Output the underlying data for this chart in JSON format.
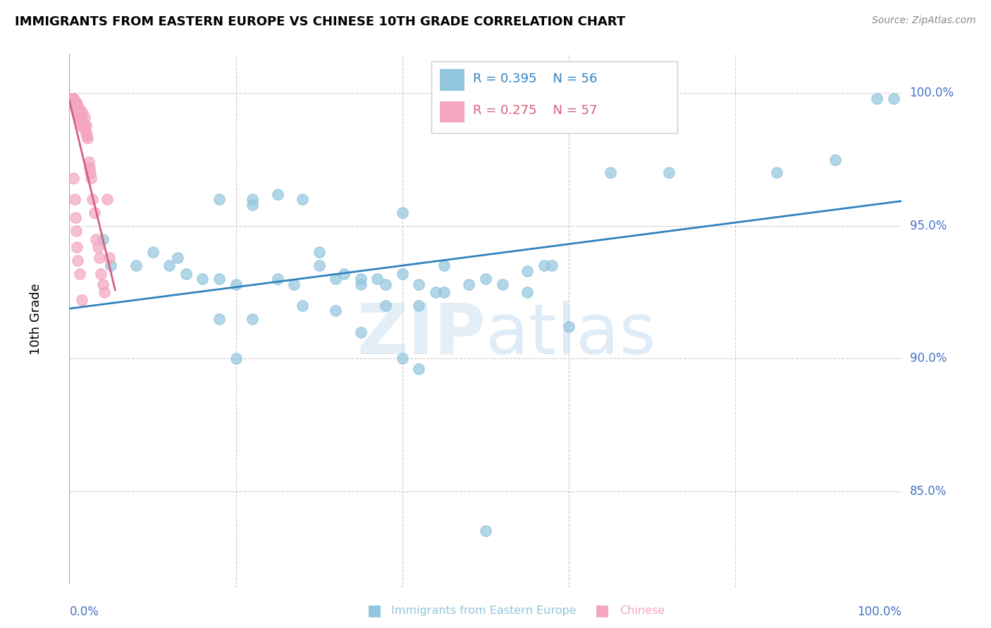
{
  "title": "IMMIGRANTS FROM EASTERN EUROPE VS CHINESE 10TH GRADE CORRELATION CHART",
  "source": "Source: ZipAtlas.com",
  "ylabel": "10th Grade",
  "ytick_labels": [
    "100.0%",
    "95.0%",
    "90.0%",
    "85.0%"
  ],
  "ytick_values": [
    1.0,
    0.95,
    0.9,
    0.85
  ],
  "xmin": 0.0,
  "xmax": 1.0,
  "ymin": 0.815,
  "ymax": 1.015,
  "blue_color": "#92c5de",
  "pink_color": "#f4a6c0",
  "blue_line_color": "#3182bd",
  "pink_line_color": "#d6607a",
  "grid_color": "#cccccc",
  "tick_color": "#4472C4",
  "blue_scatter_x": [
    0.04,
    0.12,
    0.18,
    0.22,
    0.05,
    0.08,
    0.1,
    0.13,
    0.14,
    0.16,
    0.18,
    0.2,
    0.25,
    0.27,
    0.3,
    0.32,
    0.35,
    0.38,
    0.4,
    0.42,
    0.45,
    0.48,
    0.5,
    0.52,
    0.55,
    0.57,
    0.22,
    0.25,
    0.28,
    0.3,
    0.33,
    0.35,
    0.37,
    0.4,
    0.42,
    0.45,
    0.35,
    0.4,
    0.42,
    0.2,
    0.55,
    0.6,
    0.18,
    0.22,
    0.28,
    0.32,
    0.38,
    0.44,
    0.5,
    0.58,
    0.65,
    0.72,
    0.85,
    0.92,
    0.97,
    0.99
  ],
  "blue_scatter_y": [
    0.945,
    0.935,
    0.96,
    0.96,
    0.935,
    0.935,
    0.94,
    0.938,
    0.932,
    0.93,
    0.93,
    0.928,
    0.93,
    0.928,
    0.94,
    0.93,
    0.928,
    0.928,
    0.955,
    0.92,
    0.935,
    0.928,
    0.93,
    0.928,
    0.925,
    0.935,
    0.958,
    0.962,
    0.96,
    0.935,
    0.932,
    0.93,
    0.93,
    0.932,
    0.928,
    0.925,
    0.91,
    0.9,
    0.896,
    0.9,
    0.933,
    0.912,
    0.915,
    0.915,
    0.92,
    0.918,
    0.92,
    0.925,
    0.835,
    0.935,
    0.97,
    0.97,
    0.97,
    0.975,
    0.998,
    0.998
  ],
  "pink_scatter_x": [
    0.005,
    0.005,
    0.005,
    0.005,
    0.005,
    0.006,
    0.006,
    0.006,
    0.007,
    0.007,
    0.008,
    0.008,
    0.009,
    0.009,
    0.01,
    0.01,
    0.01,
    0.011,
    0.012,
    0.012,
    0.013,
    0.013,
    0.014,
    0.015,
    0.015,
    0.015,
    0.016,
    0.017,
    0.018,
    0.018,
    0.019,
    0.02,
    0.02,
    0.021,
    0.022,
    0.023,
    0.024,
    0.025,
    0.026,
    0.028,
    0.03,
    0.032,
    0.034,
    0.036,
    0.038,
    0.04,
    0.042,
    0.045,
    0.048,
    0.005,
    0.006,
    0.007,
    0.008,
    0.009,
    0.01,
    0.012,
    0.015
  ],
  "pink_scatter_y": [
    0.998,
    0.998,
    0.998,
    0.997,
    0.996,
    0.997,
    0.996,
    0.995,
    0.997,
    0.995,
    0.996,
    0.994,
    0.996,
    0.993,
    0.995,
    0.994,
    0.992,
    0.993,
    0.994,
    0.991,
    0.992,
    0.99,
    0.991,
    0.993,
    0.99,
    0.988,
    0.989,
    0.987,
    0.991,
    0.988,
    0.986,
    0.988,
    0.985,
    0.984,
    0.983,
    0.974,
    0.972,
    0.97,
    0.968,
    0.96,
    0.955,
    0.945,
    0.942,
    0.938,
    0.932,
    0.928,
    0.925,
    0.96,
    0.938,
    0.968,
    0.96,
    0.953,
    0.948,
    0.942,
    0.937,
    0.932,
    0.922
  ]
}
